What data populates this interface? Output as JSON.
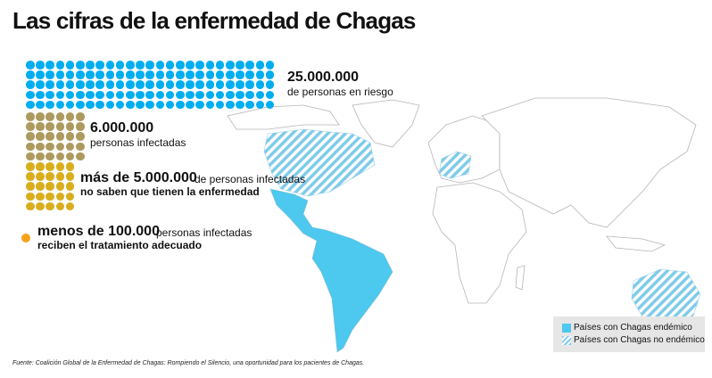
{
  "title": "Las cifras de la enfermedad de Chagas",
  "colors": {
    "risk": "#00aeef",
    "infected": "#ad9a5e",
    "unaware": "#d9ae1d",
    "treated": "#f7a11a",
    "endemic": "#4dc8ee",
    "map_stroke": "#b5b5b5"
  },
  "groups": [
    {
      "id": "risk",
      "cols": 25,
      "rows": 5,
      "number": "25.000.000",
      "text": "de personas en riesgo"
    },
    {
      "id": "infected",
      "cols": 6,
      "rows": 5,
      "number": "6.000.000",
      "text": "personas infectadas"
    },
    {
      "id": "unaware",
      "cols": 5,
      "rows": 5,
      "number": "más de 5.000.000",
      "text": "de personas infectadas",
      "text2": "no saben que tienen la enfermedad"
    },
    {
      "id": "treated",
      "cols": 1,
      "rows": 1,
      "number": "menos de 100.000",
      "text": "personas infectadas",
      "text2": "reciben el tratamiento adecuado"
    }
  ],
  "legend": {
    "endemic": "Países con Chagas endémico",
    "non_endemic": "Países con Chagas no endémico"
  },
  "source": "Fuente: Coalición Global de la Enfermedad de Chagas: Rompiendo el Silencio, una oportunidad para los pacientes de Chagas."
}
